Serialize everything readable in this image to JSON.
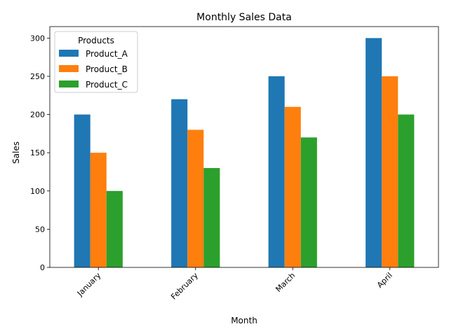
{
  "chart_data": {
    "type": "bar",
    "title": "Monthly Sales Data",
    "xlabel": "Month",
    "ylabel": "Sales",
    "categories": [
      "January",
      "February",
      "March",
      "April"
    ],
    "series": [
      {
        "name": "Product_A",
        "color": "#1f77b4",
        "values": [
          200,
          220,
          250,
          300
        ]
      },
      {
        "name": "Product_B",
        "color": "#ff7f0e",
        "values": [
          150,
          180,
          210,
          250
        ]
      },
      {
        "name": "Product_C",
        "color": "#2ca02c",
        "values": [
          100,
          130,
          170,
          200
        ]
      }
    ],
    "ylim": [
      0,
      315
    ],
    "yticks": [
      0,
      50,
      100,
      150,
      200,
      250,
      300
    ],
    "legend": {
      "title": "Products",
      "placement": "top-left"
    },
    "grid": false
  }
}
